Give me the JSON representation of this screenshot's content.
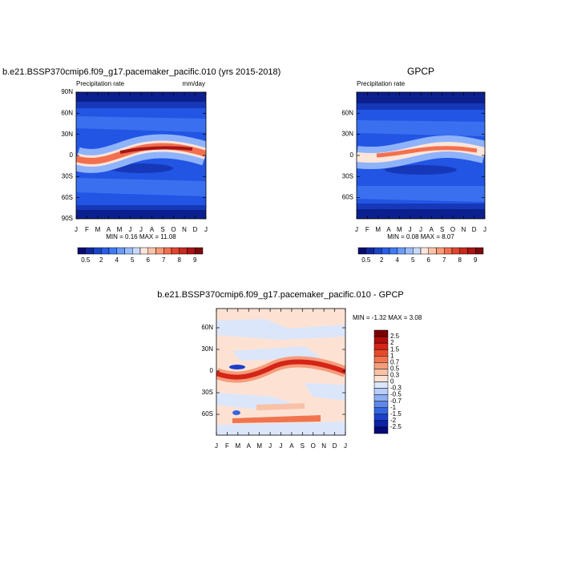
{
  "panels": [
    {
      "title": "b.e21.BSSP370cmip6.f09_g17.pacemaker_pacific.010 (yrs 2015-2018)",
      "left_label": "Precipitation rate",
      "right_label": "mm/day",
      "xticks": [
        "J",
        "F",
        "M",
        "A",
        "M",
        "J",
        "J",
        "A",
        "S",
        "O",
        "N",
        "D",
        "J"
      ],
      "yticks": [
        "90N",
        "60N",
        "30N",
        "0",
        "30S",
        "60S",
        "90S"
      ],
      "stats": "MIN =   0.16 MAX =   11.08",
      "colorbar": {
        "colors": [
          "#0a0a6e",
          "#10279b",
          "#1a44c8",
          "#2a5ee6",
          "#3f7cf5",
          "#6b9bf8",
          "#9bbcfb",
          "#c8dafc",
          "#fde5da",
          "#fcc3a8",
          "#f99b78",
          "#f2704f",
          "#e04530",
          "#c62a1e",
          "#a81515",
          "#7a0a0a"
        ],
        "labels": [
          null,
          "0.5",
          null,
          "2",
          null,
          "4",
          null,
          "5",
          null,
          "6",
          null,
          "7",
          null,
          "8",
          null,
          "9"
        ]
      }
    },
    {
      "title": "GPCP",
      "left_label": "Precipitation rate",
      "xticks": [
        "J",
        "F",
        "M",
        "A",
        "M",
        "J",
        "J",
        "A",
        "S",
        "O",
        "N",
        "D",
        "J"
      ],
      "yticks": [
        "60N",
        "30N",
        "0",
        "30S",
        "60S"
      ],
      "stats": "MIN =   0.08 MAX =   8.07",
      "colorbar": {
        "colors": [
          "#0a0a6e",
          "#10279b",
          "#1a44c8",
          "#2a5ee6",
          "#3f7cf5",
          "#6b9bf8",
          "#9bbcfb",
          "#c8dafc",
          "#fde5da",
          "#fcc3a8",
          "#f99b78",
          "#f2704f",
          "#e04530",
          "#c62a1e",
          "#a81515",
          "#7a0a0a"
        ],
        "labels": [
          null,
          "0.5",
          null,
          "2",
          null,
          "4",
          null,
          "5",
          null,
          "6",
          null,
          "7",
          null,
          "8",
          null,
          "9"
        ]
      }
    },
    {
      "title": "b.e21.BSSP370cmip6.f09_g17.pacemaker_pacific.010 - GPCP",
      "xticks": [
        "J",
        "F",
        "M",
        "A",
        "M",
        "J",
        "J",
        "A",
        "S",
        "O",
        "N",
        "D",
        "J"
      ],
      "yticks": [
        "60N",
        "30N",
        "0",
        "30S",
        "60S"
      ],
      "stats": "MIN =  -1.32 MAX =   3.08",
      "colorbar": {
        "colors": [
          "#7a0000",
          "#b0100c",
          "#d52418",
          "#e64a2a",
          "#f0754f",
          "#f59c7a",
          "#f9c1a6",
          "#fde2d4",
          "#dbe6fb",
          "#b8cdf7",
          "#8eaef2",
          "#5e88ea",
          "#3466e0",
          "#1a40cc",
          "#0c22a8",
          "#050a78"
        ],
        "labels": [
          "2.5",
          "2",
          "1.5",
          "1",
          "0.7",
          "0.5",
          "0.3",
          "0",
          "-0.3",
          "-0.5",
          "-0.7",
          "-1",
          "-1.5",
          "-2",
          "-2.5"
        ]
      }
    }
  ]
}
